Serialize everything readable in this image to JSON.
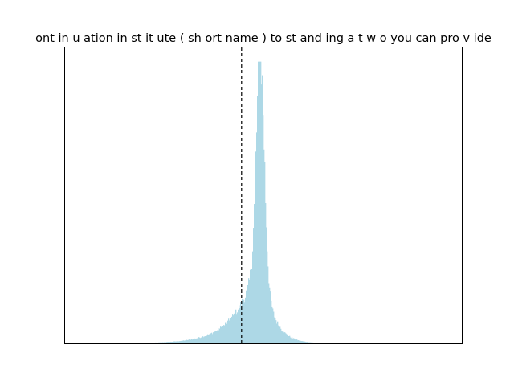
{
  "chart_data": {
    "type": "histogram",
    "title": "ont in u ation in st it ute ( sh ort name ) to st and ing a t w o you can pro v ide",
    "xlabel": "",
    "ylabel": "",
    "x_ticks_visible": false,
    "y_ticks_visible": false,
    "grid": false,
    "legend": "none",
    "bar_color": "#add8e6",
    "reference_line": {
      "x": 0.445,
      "style": "dashed",
      "color": "#000000"
    },
    "xlim": [
      0,
      1
    ],
    "ylim": [
      0,
      1
    ],
    "distribution": {
      "peak_x": 0.492,
      "peak_height": 0.952,
      "left_scale": 0.055,
      "right_scale": 0.028,
      "core_height": 0.68,
      "core_scale": 0.01,
      "support": [
        0.22,
        0.81
      ]
    }
  }
}
